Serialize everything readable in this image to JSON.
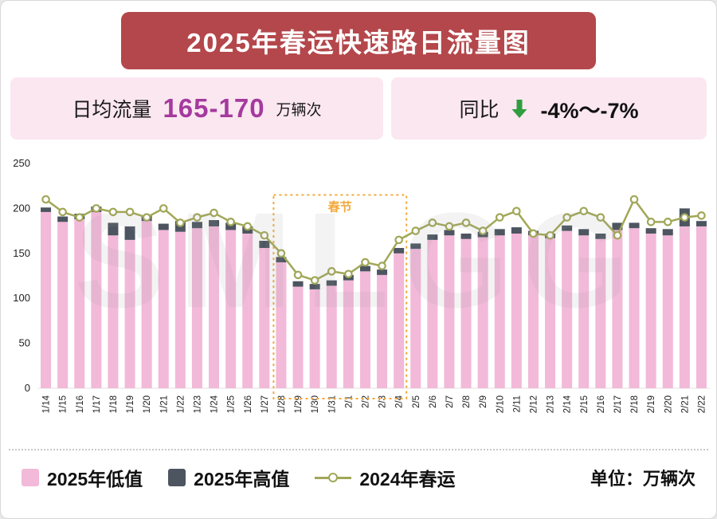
{
  "header": {
    "title": "2025年春运快速路日流量图"
  },
  "stats": {
    "daily_label": "日均流量",
    "daily_value": "165-170",
    "daily_unit": "万辆次",
    "yoy_label": "同比",
    "yoy_value": "-4%～-7%",
    "arrow_color": "#2f9e3f"
  },
  "watermark": "SMLGG",
  "legend": {
    "low_label": "2025年低值",
    "high_label": "2025年高值",
    "line_label": "2024年春运",
    "unit_label": "单位：万辆次"
  },
  "colors": {
    "title_bg": "#b4474b",
    "info_bg": "#fbe7f0",
    "purple": "#a43a9e",
    "bar_low": "#f2b9d9",
    "bar_high": "#4c5560",
    "line_2024": "#a1a757",
    "annotation": "#f2a93b"
  },
  "chart_data": {
    "type": "bar",
    "title": "2025年春运快速路日流量图",
    "ylabel": "万辆次",
    "ylim": [
      0,
      250
    ],
    "yticks": [
      0,
      50,
      100,
      150,
      200,
      250
    ],
    "grid": false,
    "legend_position": "bottom",
    "categories": [
      "1/14",
      "1/15",
      "1/16",
      "1/17",
      "1/18",
      "1/19",
      "1/20",
      "1/21",
      "1/22",
      "1/23",
      "1/24",
      "1/25",
      "1/26",
      "1/27",
      "1/28",
      "1/29",
      "1/30",
      "1/31",
      "2/1",
      "2/2",
      "2/3",
      "2/4",
      "2/5",
      "2/6",
      "2/7",
      "2/8",
      "2/9",
      "2/10",
      "2/11",
      "2/12",
      "2/13",
      "2/14",
      "2/15",
      "2/16",
      "2/17",
      "2/18",
      "2/19",
      "2/20",
      "2/21",
      "2/22"
    ],
    "series": [
      {
        "name": "2025年低值",
        "type": "bar",
        "color": "#f2b9d9",
        "values": [
          196,
          185,
          188,
          196,
          170,
          165,
          186,
          176,
          174,
          178,
          180,
          176,
          172,
          156,
          140,
          113,
          110,
          114,
          120,
          130,
          126,
          150,
          155,
          165,
          170,
          166,
          168,
          170,
          172,
          170,
          167,
          175,
          170,
          166,
          176,
          178,
          172,
          170,
          180,
          180
        ]
      },
      {
        "name": "2025年高值",
        "type": "bar-cap",
        "color": "#4c5560",
        "values": [
          201,
          191,
          194,
          202,
          184,
          180,
          192,
          183,
          186,
          185,
          187,
          184,
          180,
          164,
          146,
          119,
          116,
          120,
          126,
          136,
          132,
          156,
          161,
          171,
          176,
          172,
          174,
          177,
          179,
          175,
          172,
          181,
          177,
          172,
          184,
          184,
          178,
          177,
          200,
          186
        ]
      },
      {
        "name": "2024年春运",
        "type": "line",
        "color": "#a1a757",
        "values": [
          210,
          196,
          190,
          200,
          196,
          196,
          190,
          200,
          184,
          190,
          195,
          185,
          180,
          170,
          150,
          126,
          120,
          130,
          127,
          140,
          136,
          165,
          175,
          184,
          180,
          184,
          175,
          190,
          197,
          172,
          170,
          190,
          197,
          190,
          170,
          210,
          185,
          185,
          190,
          192
        ]
      }
    ],
    "annotation": {
      "label": "春节",
      "from": "1/28",
      "to": "2/4",
      "top": 215,
      "color": "#f2a93b"
    }
  }
}
